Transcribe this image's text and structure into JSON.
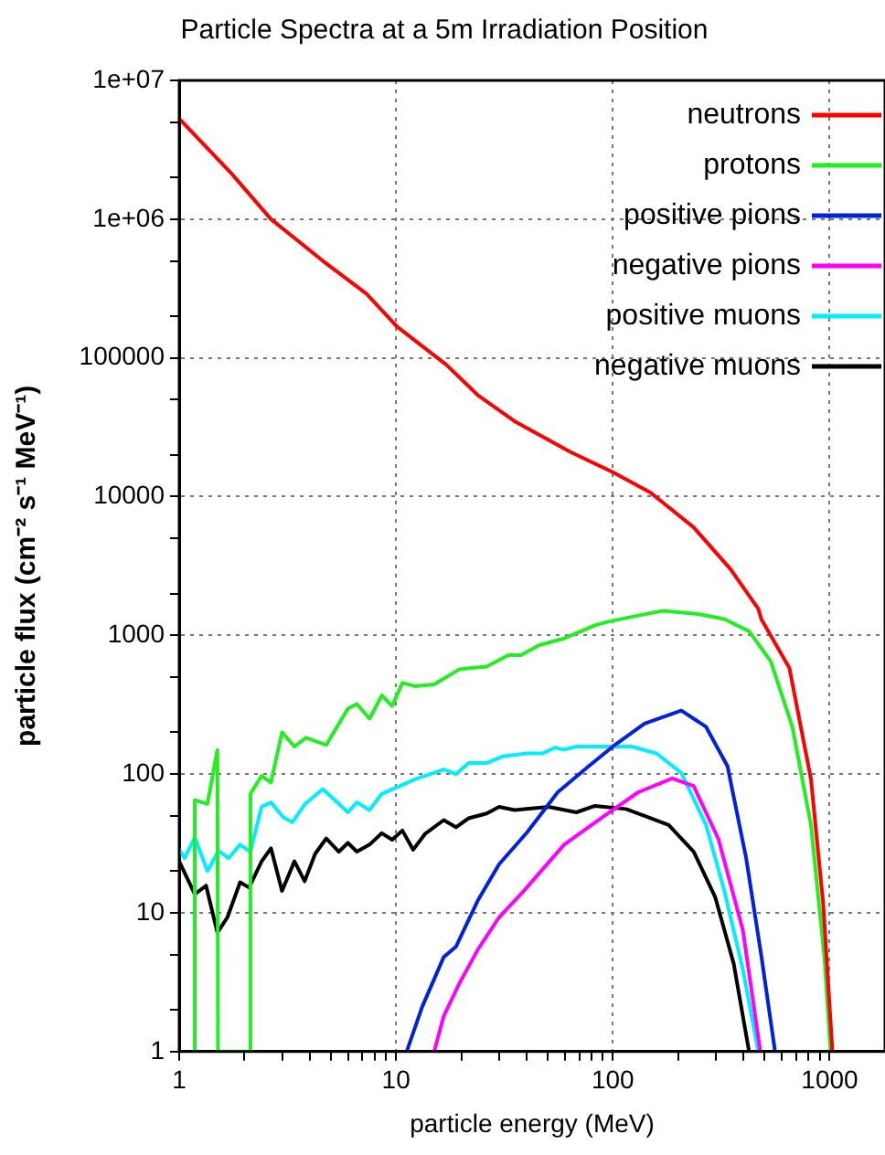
{
  "chart_data": {
    "type": "line",
    "title": "Particle Spectra at a 5m Irradiation Position",
    "xlabel": "particle energy (MeV)",
    "ylabel": "particle flux (cm⁻² s⁻¹ MeV⁻¹)",
    "log": "xy",
    "grid": true,
    "legend": "top right",
    "marker": "none",
    "line_style": "solid",
    "xlim": [
      1,
      1800
    ],
    "ylim": [
      1,
      10000000
    ],
    "xticks": [
      1,
      {
        "value": 2,
        "label": null
      },
      {
        "value": 3,
        "label": null
      },
      {
        "value": 4,
        "label": null
      },
      {
        "value": 5,
        "label": null
      },
      {
        "value": 6,
        "label": null
      },
      {
        "value": 7,
        "label": null
      },
      {
        "value": 8,
        "label": null
      },
      {
        "value": 9,
        "label": null
      },
      10,
      {
        "value": 20,
        "label": null
      },
      {
        "value": 30,
        "label": null
      },
      {
        "value": 40,
        "label": null
      },
      {
        "value": 50,
        "label": null
      },
      {
        "value": 60,
        "label": null
      },
      {
        "value": 70,
        "label": null
      },
      {
        "value": 80,
        "label": null
      },
      {
        "value": 90,
        "label": null
      },
      100,
      {
        "value": 200,
        "label": null
      },
      {
        "value": 300,
        "label": null
      },
      {
        "value": 400,
        "label": null
      },
      {
        "value": 500,
        "label": null
      },
      {
        "value": 600,
        "label": null
      },
      {
        "value": 700,
        "label": null
      },
      {
        "value": 800,
        "label": null
      },
      {
        "value": 900,
        "label": null
      },
      1000
    ],
    "yticks": [
      1,
      {
        "value": 2,
        "label": null
      },
      {
        "value": 5,
        "label": null
      },
      10,
      {
        "value": 20,
        "label": null
      },
      {
        "value": 50,
        "label": null
      },
      100,
      {
        "value": 200,
        "label": null
      },
      {
        "value": 500,
        "label": null
      },
      1000,
      {
        "value": 2000,
        "label": null
      },
      {
        "value": 5000,
        "label": null
      },
      10000,
      {
        "value": 20000,
        "label": null
      },
      {
        "value": 50000,
        "label": null
      },
      100000,
      {
        "value": 200000,
        "label": null
      },
      {
        "value": 500000,
        "label": null
      },
      {
        "value": 1000000,
        "label": "1e+06"
      },
      {
        "value": 2000000,
        "label": null
      },
      {
        "value": 5000000,
        "label": null
      },
      {
        "value": 10000000,
        "label": "1e+07"
      }
    ],
    "series": [
      {
        "name": "neutrons",
        "color": "#ff0000",
        "x": [
          1,
          1.73,
          2.65,
          4.6,
          7.3,
          10.1,
          17.1,
          23.8,
          35.2,
          63.6,
          100,
          149,
          236,
          349,
          469,
          485,
          652,
          820,
          934,
          1030
        ],
        "values": [
          5300000,
          2160000,
          1000000,
          500000,
          290000,
          168000,
          89000,
          54000,
          35000,
          21000,
          15000,
          10700,
          6000,
          3000,
          1550,
          1300,
          583,
          92,
          11.6,
          1
        ]
      },
      {
        "name": "protons",
        "color": "#22ee22",
        "x": [
          1.17,
          1.18,
          1.35,
          1.5,
          1.51,
          2.12,
          2.13,
          2.4,
          2.65,
          2.98,
          3.4,
          3.85,
          4.77,
          6,
          6.6,
          7.55,
          8.6,
          9.6,
          10.7,
          12.3,
          15,
          19.6,
          26.2,
          33,
          37.7,
          45.8,
          59.6,
          82.7,
          94,
          131,
          170,
          251,
          327,
          425,
          535,
          673,
          820,
          946,
          1010
        ],
        "values": [
          1,
          65,
          61,
          149,
          1,
          1,
          72,
          97,
          87,
          200,
          158,
          183,
          162,
          296,
          320,
          251,
          369,
          310,
          454,
          430,
          443,
          570,
          595,
          720,
          720,
          850,
          950,
          1180,
          1250,
          1390,
          1500,
          1420,
          1310,
          1070,
          650,
          219,
          43,
          4.8,
          1
        ]
      },
      {
        "name": "positive pions",
        "color": "#0022dd",
        "x": [
          11.2,
          13.2,
          16.6,
          18.9,
          23.8,
          29.9,
          40.2,
          55.7,
          77.4,
          100,
          140,
          207,
          269,
          338,
          412,
          485,
          560
        ],
        "values": [
          1,
          2.1,
          4.8,
          5.7,
          12.2,
          22.4,
          38,
          74,
          114,
          158,
          231,
          287,
          219,
          114,
          24.8,
          4.8,
          1
        ]
      },
      {
        "name": "negative pions",
        "color": "#ff00ff",
        "x": [
          15,
          16.6,
          19.6,
          23.8,
          29.9,
          38.9,
          59.6,
          88,
          131,
          188,
          236,
          307,
          398,
          479
        ],
        "values": [
          1,
          1.8,
          3.1,
          5.4,
          9.3,
          14.4,
          31,
          48,
          74,
          93,
          82,
          34,
          7.5,
          1
        ]
      },
      {
        "name": "positive muons",
        "color": "#00eeff",
        "x": [
          1,
          1.06,
          1.18,
          1.35,
          1.52,
          1.69,
          1.91,
          2.13,
          2.4,
          2.65,
          3.02,
          3.33,
          3.79,
          4.6,
          6,
          6.6,
          7.55,
          8.6,
          12.3,
          16.6,
          18.9,
          21.6,
          26.2,
          31,
          40.2,
          47.3,
          54,
          59.6,
          67.9,
          100,
          122,
          159,
          207,
          269,
          327,
          398,
          469
        ],
        "values": [
          28.5,
          24.8,
          35,
          20,
          28,
          24.8,
          31,
          27.6,
          58,
          62.5,
          48.7,
          45,
          60.5,
          78,
          53,
          62.5,
          55,
          72,
          92,
          108,
          100,
          120,
          120,
          134,
          141,
          141,
          155,
          150,
          158,
          158,
          158,
          141,
          102,
          43,
          14.4,
          3.9,
          1
        ]
      },
      {
        "name": "negative muons",
        "color": "#000000",
        "x": [
          1,
          1.18,
          1.33,
          1.5,
          1.67,
          1.91,
          2.1,
          2.4,
          2.65,
          2.98,
          3.4,
          3.79,
          4.24,
          4.77,
          5.45,
          6,
          6.6,
          7.55,
          8.6,
          9.6,
          10.7,
          12,
          13.6,
          16.6,
          18.9,
          21.6,
          26.2,
          29.9,
          35.2,
          50.6,
          67.9,
          82.7,
          115,
          140,
          181,
          236,
          297,
          361,
          425
        ],
        "values": [
          23.5,
          13.6,
          15.7,
          7.2,
          9.3,
          16.6,
          15.2,
          23.5,
          29.2,
          14.4,
          23.5,
          16.9,
          26.7,
          34.4,
          27.6,
          31.9,
          27.6,
          31,
          37.5,
          33.6,
          39.2,
          28.5,
          37,
          46.6,
          41.4,
          48,
          52,
          58,
          55,
          58,
          53,
          59,
          56,
          50,
          43,
          27.6,
          12.9,
          4.3,
          1
        ]
      }
    ]
  }
}
